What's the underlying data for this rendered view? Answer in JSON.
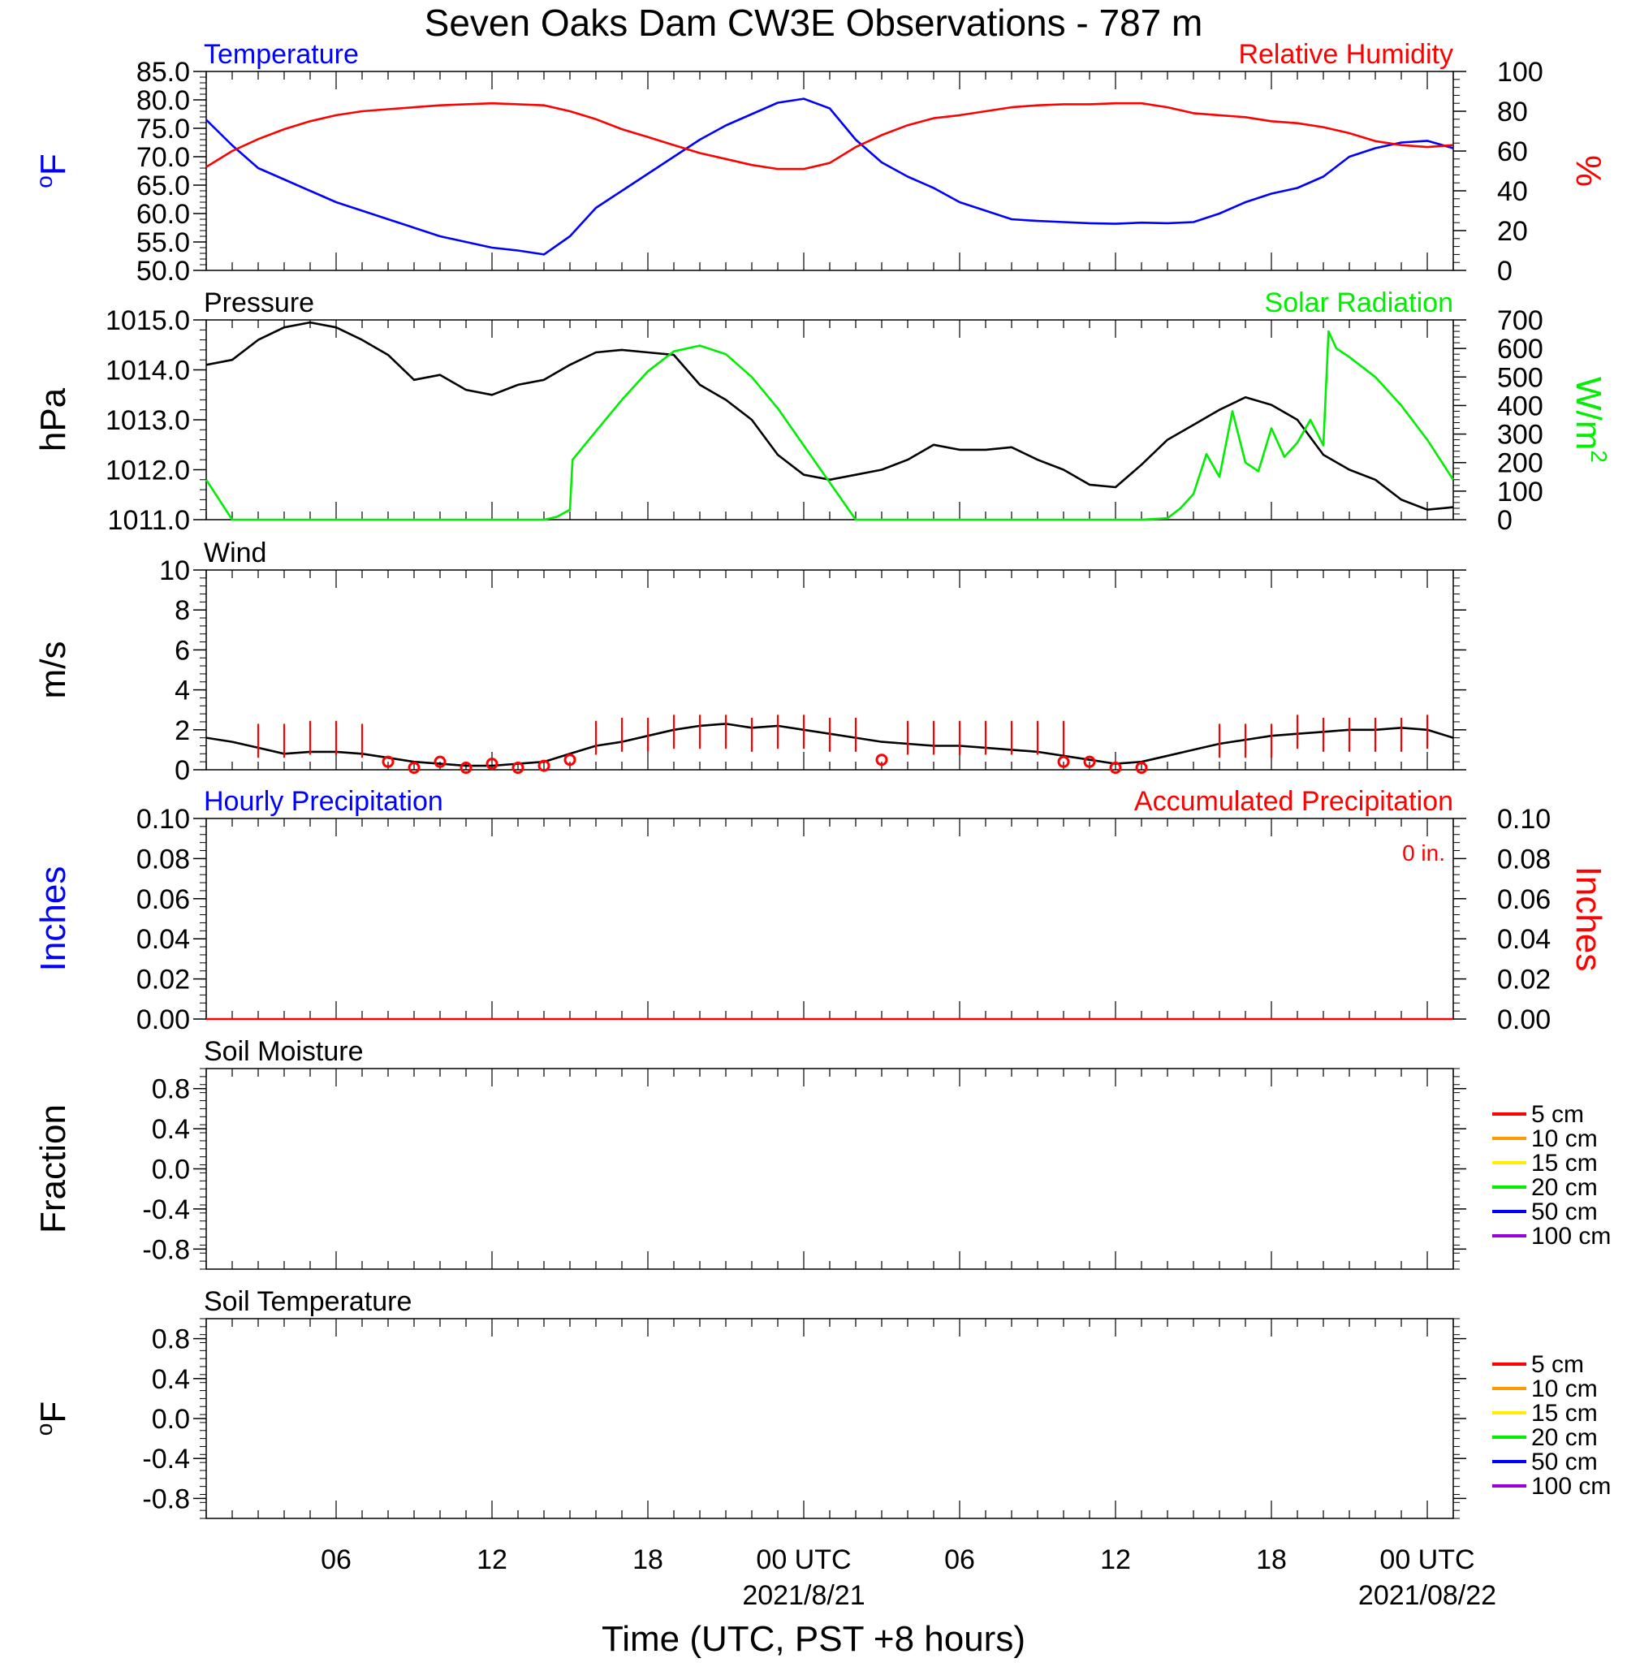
{
  "title": "Seven Oaks Dam CW3E Observations - 787 m",
  "xlabel": "Time (UTC, PST +8 hours)",
  "x_ticks": [
    {
      "h": 6,
      "label": "06",
      "sub": ""
    },
    {
      "h": 12,
      "label": "12",
      "sub": ""
    },
    {
      "h": 18,
      "label": "18",
      "sub": ""
    },
    {
      "h": 24,
      "label": "00 UTC",
      "sub": "2021/8/21"
    },
    {
      "h": 30,
      "label": "06",
      "sub": ""
    },
    {
      "h": 36,
      "label": "12",
      "sub": ""
    },
    {
      "h": 42,
      "label": "18",
      "sub": ""
    },
    {
      "h": 48,
      "label": "00 UTC",
      "sub": "2021/08/22"
    }
  ],
  "chart_data": [
    {
      "type": "line",
      "title_left": "Temperature",
      "title_right": "Relative Humidity",
      "ylabel_left": "°F",
      "ylabel_right": "%",
      "ylim_left": [
        50,
        85
      ],
      "ylim_right": [
        0,
        100
      ],
      "yticks_left": [
        "85.0",
        "80.0",
        "75.0",
        "70.0",
        "65.0",
        "60.0",
        "55.0",
        "50.0"
      ],
      "yticks_right": [
        "100",
        "80",
        "60",
        "40",
        "20",
        "0"
      ],
      "xlim": [
        1,
        49
      ],
      "colors": {
        "left": "#0000ff",
        "right": "#ff0000"
      },
      "series": [
        {
          "name": "Temperature",
          "axis": "left",
          "x": [
            1,
            2,
            3,
            4,
            5,
            6,
            7,
            8,
            9,
            10,
            11,
            12,
            13,
            14,
            15,
            16,
            17,
            18,
            19,
            20,
            21,
            22,
            23,
            24,
            25,
            26,
            27,
            28,
            29,
            30,
            31,
            32,
            33,
            34,
            35,
            36,
            37,
            38,
            39,
            40,
            41,
            42,
            43,
            44,
            45,
            46,
            47,
            48,
            49
          ],
          "y": [
            76.5,
            72,
            68,
            66,
            64,
            62,
            60.5,
            59,
            57.5,
            56,
            55,
            54,
            53.5,
            52.8,
            56,
            61,
            64,
            67,
            70,
            73,
            75.5,
            77.5,
            79.5,
            80.2,
            78.5,
            73,
            69,
            66.5,
            64.5,
            62,
            60.5,
            59,
            58.7,
            58.5,
            58.3,
            58.2,
            58.4,
            58.3,
            58.5,
            60,
            62,
            63.5,
            64.5,
            66.5,
            70,
            71.5,
            72.5,
            72.8,
            71.5
          ]
        },
        {
          "name": "Relative Humidity",
          "axis": "right",
          "x": [
            1,
            2,
            3,
            4,
            5,
            6,
            7,
            8,
            9,
            10,
            11,
            12,
            13,
            14,
            15,
            16,
            17,
            18,
            19,
            20,
            21,
            22,
            23,
            24,
            25,
            26,
            27,
            28,
            29,
            30,
            31,
            32,
            33,
            34,
            35,
            36,
            37,
            38,
            39,
            40,
            41,
            42,
            43,
            44,
            45,
            46,
            47,
            48,
            49
          ],
          "y": [
            52,
            60,
            66,
            71,
            75,
            78,
            80,
            81,
            82,
            83,
            83.5,
            84,
            83.5,
            83,
            80,
            76,
            71,
            67,
            63,
            59,
            56,
            53,
            51,
            51,
            54,
            62,
            68,
            73,
            76.5,
            78,
            80,
            82,
            83,
            83.5,
            83.5,
            84,
            84,
            82,
            79,
            78,
            77,
            75,
            74,
            72,
            69,
            65,
            63,
            62,
            63
          ]
        }
      ]
    },
    {
      "type": "line",
      "title_left": "Pressure",
      "title_right": "Solar Radiation",
      "ylabel_left": "hPa",
      "ylabel_right": "W/m2",
      "ylim_left": [
        1011,
        1015
      ],
      "ylim_right": [
        0,
        700
      ],
      "yticks_left": [
        "1015.0",
        "1014.0",
        "1013.0",
        "1012.0",
        "1011.0"
      ],
      "yticks_right": [
        "700",
        "600",
        "500",
        "400",
        "300",
        "200",
        "100",
        "0"
      ],
      "xlim": [
        1,
        49
      ],
      "colors": {
        "left": "#000000",
        "right": "#00ee00"
      },
      "series": [
        {
          "name": "Pressure",
          "axis": "left",
          "x": [
            1,
            2,
            3,
            4,
            5,
            6,
            7,
            8,
            9,
            10,
            11,
            12,
            13,
            14,
            15,
            16,
            17,
            18,
            19,
            20,
            21,
            22,
            23,
            24,
            25,
            26,
            27,
            28,
            29,
            30,
            31,
            32,
            33,
            34,
            35,
            36,
            37,
            38,
            39,
            40,
            41,
            42,
            43,
            44,
            45,
            46,
            47,
            48,
            49
          ],
          "y": [
            1014.1,
            1014.2,
            1014.6,
            1014.85,
            1014.95,
            1014.85,
            1014.6,
            1014.3,
            1013.8,
            1013.9,
            1013.6,
            1013.5,
            1013.7,
            1013.8,
            1014.1,
            1014.35,
            1014.4,
            1014.35,
            1014.3,
            1013.7,
            1013.4,
            1013,
            1012.3,
            1011.9,
            1011.8,
            1011.9,
            1012,
            1012.2,
            1012.5,
            1012.4,
            1012.4,
            1012.45,
            1012.2,
            1012,
            1011.7,
            1011.65,
            1012.1,
            1012.6,
            1012.9,
            1013.2,
            1013.45,
            1013.3,
            1013,
            1012.3,
            1012,
            1011.8,
            1011.4,
            1011.2,
            1011.25
          ]
        },
        {
          "name": "Solar Radiation",
          "axis": "right",
          "x": [
            1,
            2,
            3,
            4,
            5,
            6,
            7,
            8,
            9,
            10,
            11,
            12,
            13,
            14,
            14.5,
            15,
            15.1,
            16,
            17,
            18,
            19,
            20,
            21,
            22,
            23,
            24,
            25,
            26,
            27,
            28,
            29,
            30,
            31,
            32,
            33,
            34,
            35,
            36,
            37,
            38,
            38.5,
            39,
            39.5,
            40,
            40.5,
            41,
            41.5,
            42,
            42.5,
            43,
            43.5,
            44,
            44.2,
            44.5,
            45,
            46,
            47,
            48,
            49
          ],
          "y": [
            140,
            0,
            0,
            0,
            0,
            0,
            0,
            0,
            0,
            0,
            0,
            0,
            0,
            0,
            10,
            35,
            210,
            310,
            420,
            520,
            590,
            610,
            580,
            500,
            390,
            260,
            130,
            0,
            0,
            0,
            0,
            0,
            0,
            0,
            0,
            0,
            0,
            0,
            0,
            5,
            40,
            90,
            230,
            150,
            380,
            200,
            170,
            320,
            220,
            270,
            350,
            260,
            660,
            600,
            570,
            500,
            400,
            280,
            140
          ]
        }
      ]
    },
    {
      "type": "line",
      "title_left": "Wind",
      "ylabel_left": "m/s",
      "ylim_left": [
        0,
        10
      ],
      "yticks_left": [
        "10",
        "8",
        "6",
        "4",
        "2",
        "0"
      ],
      "xlim": [
        1,
        49
      ],
      "colors": {
        "left": "#000000",
        "right": "#ff0000"
      },
      "series": [
        {
          "name": "Wind",
          "axis": "left",
          "x": [
            1,
            2,
            3,
            4,
            5,
            6,
            7,
            8,
            9,
            10,
            11,
            12,
            13,
            14,
            15,
            16,
            17,
            18,
            19,
            20,
            21,
            22,
            23,
            24,
            25,
            26,
            27,
            28,
            29,
            30,
            31,
            32,
            33,
            34,
            35,
            36,
            37,
            38,
            39,
            40,
            41,
            42,
            43,
            44,
            45,
            46,
            47,
            48,
            49
          ],
          "y": [
            1.6,
            1.4,
            1.1,
            0.8,
            0.9,
            0.9,
            0.8,
            0.6,
            0.4,
            0.3,
            0.2,
            0.2,
            0.3,
            0.4,
            0.8,
            1.2,
            1.4,
            1.7,
            2.0,
            2.2,
            2.3,
            2.1,
            2.2,
            2.0,
            1.8,
            1.6,
            1.4,
            1.3,
            1.2,
            1.2,
            1.1,
            1.0,
            0.9,
            0.7,
            0.5,
            0.3,
            0.4,
            0.7,
            1.0,
            1.3,
            1.5,
            1.7,
            1.8,
            1.9,
            2.0,
            2.0,
            2.1,
            2.0,
            1.6
          ]
        }
      ],
      "barbs": {
        "x": [
          3,
          4,
          5,
          6,
          7,
          16,
          17,
          18,
          19,
          20,
          21,
          22,
          23,
          24,
          25,
          26,
          28,
          29,
          30,
          31,
          32,
          33,
          34,
          40,
          41,
          42,
          43,
          44,
          45,
          46,
          47,
          48
        ],
        "speed": [
          2,
          2,
          2.5,
          2.5,
          2,
          2.5,
          3,
          3,
          3.5,
          3.5,
          3.5,
          3,
          3.5,
          3.5,
          3,
          3,
          2.5,
          2.5,
          2.5,
          2.5,
          2.5,
          2.5,
          2.5,
          2,
          2,
          2,
          3.5,
          3,
          3,
          3,
          3,
          3.5
        ]
      },
      "calm_x": [
        8,
        9,
        10,
        11,
        12,
        13,
        14,
        15,
        27,
        34,
        35,
        36,
        37
      ],
      "calm_y": [
        0.4,
        0.1,
        0.4,
        0.1,
        0.3,
        0.1,
        0.2,
        0.5,
        0.5,
        0.4,
        0.4,
        0.1,
        0.1
      ]
    },
    {
      "type": "line",
      "title_left": "Hourly Precipitation",
      "title_right": "Accumulated Precipitation",
      "annotation": "0 in.",
      "ylabel_left": "Inches",
      "ylabel_right": "Inches",
      "ylim_left": [
        0,
        0.1
      ],
      "ylim_right": [
        0,
        0.1
      ],
      "yticks_left": [
        "0.10",
        "0.08",
        "0.06",
        "0.04",
        "0.02",
        "0.00"
      ],
      "yticks_right": [
        "0.10",
        "0.08",
        "0.06",
        "0.04",
        "0.02",
        "0.00"
      ],
      "xlim": [
        1,
        49
      ],
      "colors": {
        "left": "#0000ff",
        "right": "#ff0000"
      },
      "series": [
        {
          "name": "Accumulated Precipitation",
          "axis": "right",
          "x": [
            1,
            49
          ],
          "y": [
            0,
            0
          ]
        }
      ]
    },
    {
      "type": "line",
      "title_left": "Soil Moisture",
      "ylabel_left": "Fraction",
      "ylim_left": [
        -1,
        1
      ],
      "yticks_left": [
        "0.8",
        "0.4",
        "0.0",
        "-0.4",
        "-0.8"
      ],
      "xlim": [
        1,
        49
      ],
      "legend": [
        "5 cm",
        "10 cm",
        "15 cm",
        "20 cm",
        "50 cm",
        "100 cm"
      ],
      "legend_colors": [
        "#ff0000",
        "#ff9900",
        "#ffee00",
        "#00ee00",
        "#0000ff",
        "#9900dd"
      ],
      "series": []
    },
    {
      "type": "line",
      "title_left": "Soil Temperature",
      "ylabel_left": "°F",
      "ylim_left": [
        -1,
        1
      ],
      "yticks_left": [
        "0.8",
        "0.4",
        "0.0",
        "-0.4",
        "-0.8"
      ],
      "xlim": [
        1,
        49
      ],
      "legend": [
        "5 cm",
        "10 cm",
        "15 cm",
        "20 cm",
        "50 cm",
        "100 cm"
      ],
      "legend_colors": [
        "#ff0000",
        "#ff9900",
        "#ffee00",
        "#00ee00",
        "#0000ff",
        "#9900dd"
      ],
      "series": []
    }
  ]
}
